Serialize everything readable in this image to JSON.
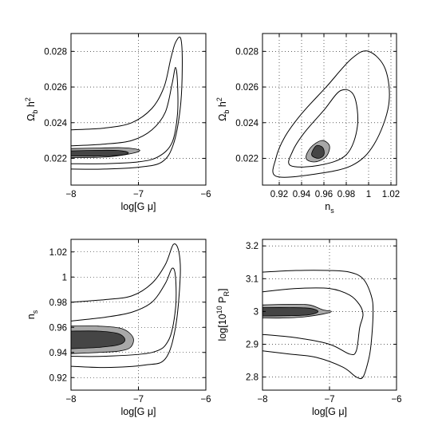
{
  "chart_data": [
    {
      "type": "contour",
      "xlabel": "log[G μ]",
      "ylabel_main": "Ω",
      "ylabel_sub": "b",
      "ylabel_tail": " h",
      "ylabel_sup": "2",
      "xlim": [
        -8,
        -6
      ],
      "ylim": [
        0.0205,
        0.029
      ],
      "xticks": [
        -8,
        -7,
        -6
      ],
      "xtick_labels": [
        "−8",
        "−7",
        "−6"
      ],
      "yticks": [
        0.022,
        0.024,
        0.026,
        0.028
      ],
      "ytick_labels": [
        "0.022",
        "0.024",
        "0.026",
        "0.028"
      ],
      "grid": true,
      "contours": [
        {
          "level": "outer",
          "fill": "none",
          "points": [
            [
              -8,
              0.0236
            ],
            [
              -7.5,
              0.0237
            ],
            [
              -7.1,
              0.024
            ],
            [
              -6.8,
              0.0248
            ],
            [
              -6.62,
              0.026
            ],
            [
              -6.52,
              0.0276
            ],
            [
              -6.45,
              0.0285
            ],
            [
              -6.37,
              0.0287
            ],
            [
              -6.35,
              0.027
            ],
            [
              -6.38,
              0.0248
            ],
            [
              -6.48,
              0.0228
            ],
            [
              -6.65,
              0.0218
            ],
            [
              -7.0,
              0.0215
            ],
            [
              -7.5,
              0.0214
            ],
            [
              -8,
              0.0214
            ]
          ]
        },
        {
          "level": "middle",
          "fill": "none",
          "points": [
            [
              -8,
              0.0227
            ],
            [
              -7.5,
              0.0228
            ],
            [
              -7.1,
              0.023
            ],
            [
              -6.8,
              0.0236
            ],
            [
              -6.6,
              0.0246
            ],
            [
              -6.5,
              0.0262
            ],
            [
              -6.45,
              0.0271
            ],
            [
              -6.42,
              0.0262
            ],
            [
              -6.42,
              0.0245
            ],
            [
              -6.5,
              0.0229
            ],
            [
              -6.7,
              0.0221
            ],
            [
              -7.0,
              0.0218
            ],
            [
              -7.5,
              0.0217
            ],
            [
              -8,
              0.0217
            ]
          ]
        },
        {
          "level": "light",
          "fill": "#a8a8a8",
          "points": [
            [
              -8,
              0.02255
            ],
            [
              -7.6,
              0.02258
            ],
            [
              -7.25,
              0.0226
            ],
            [
              -7.05,
              0.02253
            ],
            [
              -6.98,
              0.02243
            ],
            [
              -7.1,
              0.02227
            ],
            [
              -7.4,
              0.0221
            ],
            [
              -7.7,
              0.02205
            ],
            [
              -8,
              0.02205
            ]
          ]
        },
        {
          "level": "dark",
          "fill": "#454545",
          "points": [
            [
              -8,
              0.02242
            ],
            [
              -7.6,
              0.02245
            ],
            [
              -7.3,
              0.02244
            ],
            [
              -7.15,
              0.02232
            ],
            [
              -7.25,
              0.02218
            ],
            [
              -7.6,
              0.02213
            ],
            [
              -8,
              0.02213
            ]
          ]
        }
      ]
    },
    {
      "type": "contour",
      "xlabel_main": "n",
      "xlabel_sub": "s",
      "ylabel_main": "Ω",
      "ylabel_sub": "b",
      "ylabel_tail": " h",
      "ylabel_sup": "2",
      "xlim": [
        0.905,
        1.025
      ],
      "ylim": [
        0.0205,
        0.029
      ],
      "xticks": [
        0.92,
        0.94,
        0.96,
        0.98,
        1.0,
        1.02
      ],
      "xtick_labels": [
        "0.92",
        "0.94",
        "0.96",
        "0.98",
        "1",
        "1.02"
      ],
      "yticks": [
        0.022,
        0.024,
        0.026,
        0.028
      ],
      "ytick_labels": [
        "0.022",
        "0.024",
        "0.026",
        "0.028"
      ],
      "grid": true,
      "contours": [
        {
          "level": "outer",
          "fill": "none",
          "closed": true,
          "points": [
            [
              0.917,
              0.021
            ],
            [
              0.95,
              0.0211
            ],
            [
              0.985,
              0.0216
            ],
            [
              1.005,
              0.0228
            ],
            [
              1.018,
              0.025
            ],
            [
              1.015,
              0.027
            ],
            [
              1.0,
              0.028
            ],
            [
              0.985,
              0.0276
            ],
            [
              0.962,
              0.026
            ],
            [
              0.94,
              0.0245
            ],
            [
              0.925,
              0.0232
            ],
            [
              0.917,
              0.022
            ]
          ]
        },
        {
          "level": "middle",
          "fill": "none",
          "closed": true,
          "points": [
            [
              0.93,
              0.0216
            ],
            [
              0.955,
              0.0216
            ],
            [
              0.98,
              0.0222
            ],
            [
              0.99,
              0.0238
            ],
            [
              0.987,
              0.0255
            ],
            [
              0.975,
              0.0258
            ],
            [
              0.96,
              0.0247
            ],
            [
              0.942,
              0.0234
            ],
            [
              0.932,
              0.0224
            ]
          ]
        },
        {
          "level": "light",
          "fill": "#a8a8a8",
          "closed": true,
          "points": [
            [
              0.944,
              0.022
            ],
            [
              0.952,
              0.0218
            ],
            [
              0.962,
              0.0221
            ],
            [
              0.965,
              0.0227
            ],
            [
              0.958,
              0.023
            ],
            [
              0.948,
              0.0226
            ]
          ]
        },
        {
          "level": "dark",
          "fill": "#454545",
          "closed": true,
          "points": [
            [
              0.949,
              0.0222
            ],
            [
              0.955,
              0.022
            ],
            [
              0.96,
              0.0222
            ],
            [
              0.959,
              0.0226
            ],
            [
              0.953,
              0.0227
            ]
          ]
        }
      ]
    },
    {
      "type": "contour",
      "xlabel": "log[G μ]",
      "ylabel_main": "n",
      "ylabel_sub": "s",
      "xlim": [
        -8,
        -6
      ],
      "ylim": [
        0.91,
        1.03
      ],
      "xticks": [
        -8,
        -7,
        -6
      ],
      "xtick_labels": [
        "−8",
        "−7",
        "−6"
      ],
      "yticks": [
        0.92,
        0.94,
        0.96,
        0.98,
        1.0,
        1.02
      ],
      "ytick_labels": [
        "0.92",
        "0.94",
        "0.96",
        "0.98",
        "1",
        "1.02"
      ],
      "grid": true,
      "contours": [
        {
          "level": "outer",
          "fill": "none",
          "points": [
            [
              -8,
              0.98
            ],
            [
              -7.5,
              0.982
            ],
            [
              -7.1,
              0.985
            ],
            [
              -6.8,
              0.995
            ],
            [
              -6.6,
              1.01
            ],
            [
              -6.48,
              1.026
            ],
            [
              -6.4,
              1.02
            ],
            [
              -6.38,
              1.0
            ],
            [
              -6.45,
              0.96
            ],
            [
              -6.6,
              0.935
            ],
            [
              -6.9,
              0.93
            ],
            [
              -7.5,
              0.928
            ],
            [
              -8,
              0.929
            ]
          ]
        },
        {
          "level": "middle",
          "fill": "none",
          "points": [
            [
              -8,
              0.965
            ],
            [
              -7.5,
              0.968
            ],
            [
              -7.1,
              0.972
            ],
            [
              -6.8,
              0.98
            ],
            [
              -6.6,
              0.995
            ],
            [
              -6.5,
              1.007
            ],
            [
              -6.45,
              1.0
            ],
            [
              -6.45,
              0.975
            ],
            [
              -6.55,
              0.95
            ],
            [
              -6.8,
              0.94
            ],
            [
              -7.5,
              0.937
            ],
            [
              -8,
              0.937
            ]
          ]
        },
        {
          "level": "light",
          "fill": "#a8a8a8",
          "points": [
            [
              -8,
              0.961
            ],
            [
              -7.6,
              0.961
            ],
            [
              -7.25,
              0.959
            ],
            [
              -7.08,
              0.952
            ],
            [
              -7.12,
              0.944
            ],
            [
              -7.3,
              0.941
            ],
            [
              -7.6,
              0.94
            ],
            [
              -8,
              0.939
            ]
          ]
        },
        {
          "level": "dark",
          "fill": "#454545",
          "points": [
            [
              -8,
              0.957
            ],
            [
              -7.6,
              0.957
            ],
            [
              -7.3,
              0.955
            ],
            [
              -7.2,
              0.95
            ],
            [
              -7.3,
              0.946
            ],
            [
              -7.6,
              0.944
            ],
            [
              -8,
              0.943
            ]
          ]
        }
      ]
    },
    {
      "type": "contour",
      "xlabel": "log[G μ]",
      "ylabel_main": "log[10",
      "ylabel_sup": "10",
      "ylabel_tail": " P",
      "ylabel_sub": "R",
      "ylabel_end": "]",
      "xlim": [
        -8,
        -6
      ],
      "ylim": [
        2.76,
        3.22
      ],
      "xticks": [
        -8,
        -7,
        -6
      ],
      "xtick_labels": [
        "−8",
        "−7",
        "−6"
      ],
      "yticks": [
        2.8,
        2.9,
        3.0,
        3.1,
        3.2
      ],
      "ytick_labels": [
        "2.8",
        "2.9",
        "3",
        "3.1",
        "3.2"
      ],
      "grid": true,
      "contours": [
        {
          "level": "outer",
          "fill": "none",
          "points": [
            [
              -8,
              3.12
            ],
            [
              -7.5,
              3.125
            ],
            [
              -7.0,
              3.125
            ],
            [
              -6.7,
              3.12
            ],
            [
              -6.5,
              3.1
            ],
            [
              -6.38,
              3.05
            ],
            [
              -6.35,
              3.0
            ],
            [
              -6.38,
              2.9
            ],
            [
              -6.42,
              2.85
            ],
            [
              -6.5,
              2.8
            ],
            [
              -6.6,
              2.8
            ],
            [
              -6.8,
              2.83
            ],
            [
              -7.2,
              2.86
            ],
            [
              -7.6,
              2.87
            ],
            [
              -8,
              2.88
            ]
          ]
        },
        {
          "level": "middle",
          "fill": "none",
          "points": [
            [
              -8,
              3.06
            ],
            [
              -7.5,
              3.07
            ],
            [
              -7.0,
              3.07
            ],
            [
              -6.7,
              3.05
            ],
            [
              -6.55,
              3.02
            ],
            [
              -6.5,
              2.99
            ],
            [
              -6.55,
              2.95
            ],
            [
              -6.6,
              2.88
            ],
            [
              -6.7,
              2.87
            ],
            [
              -7.0,
              2.9
            ],
            [
              -7.5,
              2.92
            ],
            [
              -8,
              2.93
            ]
          ]
        },
        {
          "level": "light",
          "fill": "#a8a8a8",
          "points": [
            [
              -8,
              3.02
            ],
            [
              -7.6,
              3.022
            ],
            [
              -7.3,
              3.02
            ],
            [
              -7.1,
              3.005
            ],
            [
              -6.97,
              3.0
            ],
            [
              -7.1,
              2.992
            ],
            [
              -7.4,
              2.983
            ],
            [
              -7.7,
              2.98
            ],
            [
              -8,
              2.98
            ]
          ]
        },
        {
          "level": "dark",
          "fill": "#454545",
          "points": [
            [
              -8,
              3.012
            ],
            [
              -7.6,
              3.012
            ],
            [
              -7.3,
              3.01
            ],
            [
              -7.17,
              3.0
            ],
            [
              -7.3,
              2.99
            ],
            [
              -7.6,
              2.987
            ],
            [
              -8,
              2.986
            ]
          ]
        }
      ]
    }
  ]
}
